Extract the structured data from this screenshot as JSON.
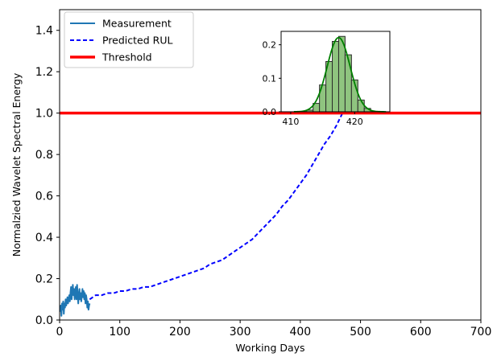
{
  "chart_data": [
    {
      "type": "line",
      "xlabel": "Working Days",
      "ylabel": "Normalzied Wavelet Spectral Energy",
      "xlim": [
        0,
        700
      ],
      "ylim": [
        0,
        1.5
      ],
      "xticks": [
        0,
        100,
        200,
        300,
        400,
        500,
        600,
        700
      ],
      "xtick_labels": [
        "0",
        "100",
        "200",
        "300",
        "400",
        "500",
        "600",
        "700"
      ],
      "yticks": [
        0.0,
        0.2,
        0.4,
        0.6,
        0.8,
        1.0,
        1.2,
        1.4
      ],
      "ytick_labels": [
        "0.0",
        "0.2",
        "0.4",
        "0.6",
        "0.8",
        "1.0",
        "1.2",
        "1.4"
      ],
      "grid": false,
      "legend_position": "top-left",
      "series": [
        {
          "name": "Measurement",
          "style": "solid",
          "color": "#1f77b4",
          "x": [
            0,
            2,
            3,
            4,
            5,
            6,
            7,
            8,
            9,
            10,
            11,
            12,
            13,
            14,
            15,
            16,
            17,
            18,
            19,
            20,
            21,
            22,
            23,
            24,
            25,
            26,
            27,
            28,
            29,
            30,
            31,
            32,
            33,
            34,
            35,
            36,
            37,
            38,
            39,
            40,
            41,
            42,
            43,
            44,
            45,
            46,
            47,
            48,
            49,
            50
          ],
          "y": [
            0.04,
            0.07,
            0.02,
            0.08,
            0.05,
            0.09,
            0.03,
            0.08,
            0.06,
            0.1,
            0.07,
            0.09,
            0.11,
            0.08,
            0.1,
            0.12,
            0.09,
            0.13,
            0.16,
            0.1,
            0.14,
            0.17,
            0.12,
            0.15,
            0.1,
            0.14,
            0.16,
            0.1,
            0.17,
            0.13,
            0.08,
            0.12,
            0.15,
            0.1,
            0.13,
            0.09,
            0.12,
            0.15,
            0.11,
            0.14,
            0.1,
            0.13,
            0.08,
            0.12,
            0.1,
            0.06,
            0.09,
            0.05,
            0.07,
            0.08
          ]
        },
        {
          "name": "Predicted RUL",
          "style": "dashed",
          "color": "#0000ff",
          "x": [
            50,
            60,
            70,
            80,
            90,
            100,
            110,
            120,
            130,
            140,
            150,
            160,
            170,
            180,
            190,
            200,
            210,
            220,
            230,
            240,
            250,
            260,
            270,
            280,
            290,
            300,
            310,
            320,
            330,
            340,
            350,
            360,
            370,
            380,
            390,
            400,
            410,
            420,
            430,
            440,
            450,
            460,
            470
          ],
          "y": [
            0.1,
            0.12,
            0.12,
            0.13,
            0.13,
            0.14,
            0.14,
            0.15,
            0.15,
            0.16,
            0.16,
            0.17,
            0.18,
            0.19,
            0.2,
            0.21,
            0.22,
            0.23,
            0.24,
            0.25,
            0.27,
            0.28,
            0.29,
            0.31,
            0.33,
            0.35,
            0.37,
            0.39,
            0.42,
            0.45,
            0.48,
            0.51,
            0.55,
            0.58,
            0.62,
            0.66,
            0.7,
            0.75,
            0.8,
            0.85,
            0.89,
            0.94,
            1.0
          ]
        },
        {
          "name": "Threshold",
          "style": "solid",
          "color": "#ff0000",
          "x": [
            0,
            700
          ],
          "y": [
            1.0,
            1.0
          ]
        }
      ]
    },
    {
      "type": "bar",
      "subtype": "histogram-with-density",
      "xlim": [
        408.5,
        425.5
      ],
      "ylim": [
        0,
        0.24
      ],
      "xticks": [
        410,
        420
      ],
      "xtick_labels": [
        "410",
        "420"
      ],
      "yticks": [
        0.0,
        0.1,
        0.2
      ],
      "ytick_labels": [
        "0.0",
        "0.1",
        "0.2"
      ],
      "bar_color": "#8fc47f",
      "curve_color": "#008000",
      "bins": [
        {
          "start": 412.5,
          "end": 413.5,
          "value": 0.005
        },
        {
          "start": 413.5,
          "end": 414.5,
          "value": 0.025
        },
        {
          "start": 414.5,
          "end": 415.5,
          "value": 0.08
        },
        {
          "start": 415.5,
          "end": 416.5,
          "value": 0.15
        },
        {
          "start": 416.5,
          "end": 417.5,
          "value": 0.21
        },
        {
          "start": 417.5,
          "end": 418.5,
          "value": 0.225
        },
        {
          "start": 418.5,
          "end": 419.5,
          "value": 0.17
        },
        {
          "start": 419.5,
          "end": 420.5,
          "value": 0.095
        },
        {
          "start": 420.5,
          "end": 421.5,
          "value": 0.035
        },
        {
          "start": 421.5,
          "end": 422.5,
          "value": 0.01
        }
      ],
      "density": {
        "mean": 417.5,
        "std": 1.8
      }
    }
  ]
}
